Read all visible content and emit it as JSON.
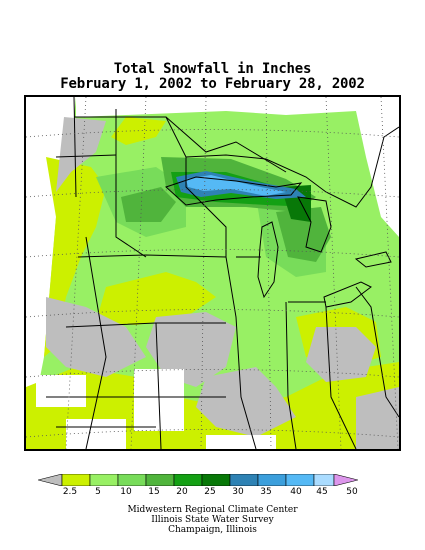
{
  "title": {
    "line1": "Total Snowfall in Inches",
    "line2": "February 1, 2002 to February 28, 2002"
  },
  "legend": {
    "ticks": [
      "2.5",
      "5",
      "10",
      "15",
      "20",
      "25",
      "30",
      "35",
      "40",
      "45",
      "50"
    ],
    "colors": [
      "#bebebe",
      "#ccf000",
      "#98f064",
      "#78dc5a",
      "#50b43c",
      "#14a014",
      "#087808",
      "#2e82b4",
      "#3c9fdc",
      "#55b9f5",
      "#aadcff",
      "#dc96eb"
    ]
  },
  "credits": {
    "line1": "Midwestern Regional Climate Center",
    "line2": "Illinois State Water Survey",
    "line3": "Champaign, Illinois"
  },
  "map": {
    "region": "Upper Midwest",
    "colors": {
      "trace": "#bebebe",
      "c2_5": "#ccf000",
      "c5": "#98f064",
      "c10": "#78dc5a",
      "c15": "#50b43c",
      "c20": "#14a014",
      "c25": "#087808",
      "c30": "#2e82b4",
      "c35": "#3c9fdc",
      "c40": "#55b9f5",
      "water": "#ffffff"
    }
  }
}
